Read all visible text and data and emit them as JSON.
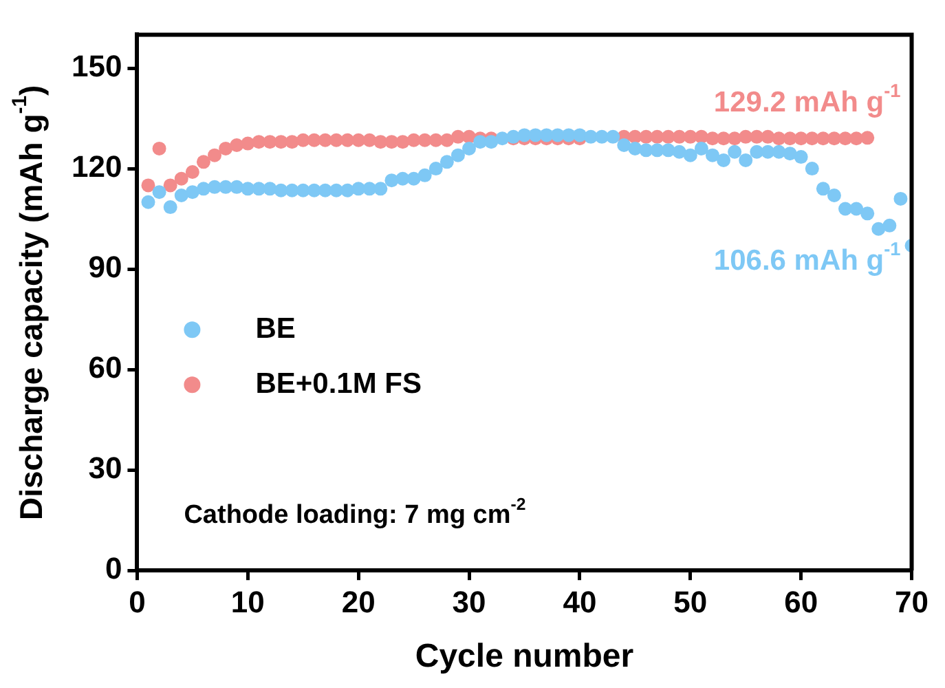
{
  "chart_data": {
    "type": "scatter",
    "xlabel": "Cycle number",
    "ylabel": "Discharge capacity (mAh g$^{-1}$)",
    "xlim": [
      0,
      70
    ],
    "xticks": [
      0,
      10,
      20,
      30,
      40,
      50,
      60,
      70
    ],
    "ylim": [
      0,
      160
    ],
    "yticks": [
      0,
      30,
      60,
      90,
      120,
      150
    ],
    "marker": "circle",
    "grid": false,
    "legend": "bottom left",
    "series": [
      {
        "name": "BE",
        "color": "#7ec8f5",
        "x": [
          1,
          2,
          3,
          4,
          5,
          6,
          7,
          8,
          9,
          10,
          11,
          12,
          13,
          14,
          15,
          16,
          17,
          18,
          19,
          20,
          21,
          22,
          23,
          24,
          25,
          26,
          27,
          28,
          29,
          30,
          31,
          32,
          33,
          34,
          35,
          36,
          37,
          38,
          39,
          40,
          41,
          42,
          43,
          44,
          45,
          46,
          47,
          48,
          49,
          50,
          51,
          52,
          53,
          54,
          55,
          56,
          57,
          58,
          59,
          60,
          61,
          62,
          63,
          64,
          65,
          66,
          67,
          68,
          69,
          70
        ],
        "values": [
          110,
          113,
          108.5,
          112,
          113,
          114,
          114.5,
          114.5,
          114.5,
          114,
          114,
          114,
          113.5,
          113.5,
          113.5,
          113.5,
          113.5,
          113.5,
          113.5,
          114,
          114,
          114,
          116.5,
          117,
          117,
          118,
          120,
          122,
          124,
          126,
          128,
          128,
          129,
          129.5,
          130,
          130,
          130,
          130,
          130,
          130,
          129.5,
          129.5,
          129.5,
          127,
          126,
          125.5,
          125.5,
          125.5,
          125,
          124,
          126,
          124,
          122.5,
          125,
          122.5,
          125,
          125,
          125,
          124.5,
          123.5,
          120,
          114,
          112,
          108,
          108,
          106.6,
          102,
          103,
          111,
          97
        ]
      },
      {
        "name": "BE+0.1M FS",
        "color": "#f28b8b",
        "x": [
          1,
          2,
          3,
          4,
          5,
          6,
          7,
          8,
          9,
          10,
          11,
          12,
          13,
          14,
          15,
          16,
          17,
          18,
          19,
          20,
          21,
          22,
          23,
          24,
          25,
          26,
          27,
          28,
          29,
          30,
          31,
          32,
          33,
          34,
          35,
          36,
          37,
          38,
          39,
          40,
          41,
          42,
          43,
          44,
          45,
          46,
          47,
          48,
          49,
          50,
          51,
          52,
          53,
          54,
          55,
          56,
          57,
          58,
          59,
          60,
          61,
          62,
          63,
          64,
          65,
          66
        ],
        "values": [
          115,
          126,
          115,
          117,
          119,
          122,
          124,
          126,
          127,
          127.5,
          128,
          128,
          128,
          128,
          128.5,
          128.5,
          128.5,
          128.5,
          128.5,
          128.5,
          128.5,
          128,
          128,
          128,
          128.5,
          128.5,
          128.5,
          128.5,
          129.5,
          129.5,
          129,
          129,
          null,
          129,
          129,
          129,
          129,
          129,
          129,
          129,
          null,
          null,
          null,
          129.5,
          129.5,
          129.5,
          129.5,
          129.5,
          129.5,
          129.5,
          129.5,
          129,
          129,
          129,
          129.5,
          129.5,
          129.5,
          129,
          129,
          129,
          129,
          129,
          129,
          129,
          129,
          129.2
        ]
      }
    ],
    "annotations": [
      "129.2 mAh g$^{-1}$",
      "106.6 mAh g$^{-1}$",
      "Cathode loading: 7 mg cm$^{-2}$"
    ]
  }
}
